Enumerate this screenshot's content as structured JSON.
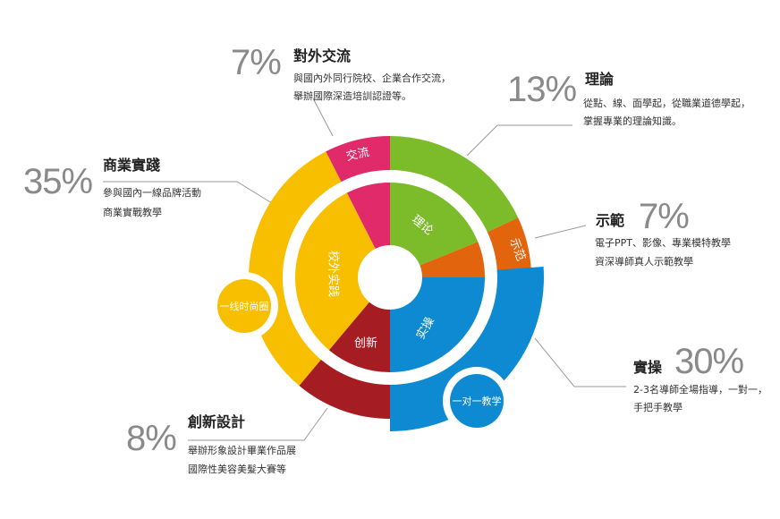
{
  "chart_data": {
    "type": "pie",
    "title": "",
    "colors": {
      "theory": "#7cbb2a",
      "demo": "#e2650e",
      "practice": "#0d8ad2",
      "innovation": "#a51d22",
      "business": "#f7bf00",
      "exchange": "#e02a6a"
    },
    "segments": [
      {
        "key": "theory",
        "title": "理論",
        "percent": 13,
        "value_label": "13%",
        "ring_label": "",
        "pie_label": "理论",
        "desc": [
          "從點、線、面學起，從職業道德學起，",
          "掌握專業的理論知識。"
        ]
      },
      {
        "key": "demo",
        "title": "示範",
        "percent": 7,
        "value_label": "7%",
        "ring_label": "示范",
        "pie_label": "",
        "desc": [
          "電子PPT、影像、專業模特教學",
          "資深導師真人示範教學"
        ]
      },
      {
        "key": "practice",
        "title": "實操",
        "percent": 30,
        "value_label": "30%",
        "ring_label": "",
        "pie_label": "实操",
        "desc": [
          "2-3名導師全場指導，一對一，",
          "手把手教學"
        ]
      },
      {
        "key": "innovation",
        "title": "創新設計",
        "percent": 8,
        "value_label": "8%",
        "ring_label": "",
        "pie_label": "创新",
        "desc": [
          "舉辦形象設計畢業作品展",
          "國際性美容美髮大賽等"
        ]
      },
      {
        "key": "business",
        "title": "商業實踐",
        "percent": 35,
        "value_label": "35%",
        "ring_label": "",
        "pie_label": "校外实践",
        "desc": [
          "參與國內一線品牌活動",
          "商業實戰教學"
        ]
      },
      {
        "key": "exchange",
        "title": "對外交流",
        "percent": 7,
        "value_label": "7%",
        "ring_label": "交流",
        "pie_label": "",
        "desc": [
          "與國內外同行院校、企業合作交流，",
          "舉辦國際深造培訓認證等。"
        ]
      }
    ],
    "badges": {
      "practice": "一对一教学",
      "business": "一线时尚圈"
    }
  }
}
